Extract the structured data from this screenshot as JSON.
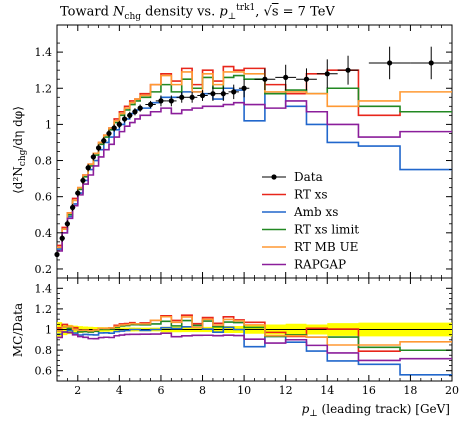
{
  "title": "Toward N_chg density vs. p_⊥^trk1, √s = 7 TeV",
  "chart_data": {
    "type": "line",
    "title": "Toward N_chg density vs. p_⊥^trk1, √s = 7 TeV",
    "xlabel": "p⊥ (leading track) [GeV]",
    "ylabel": "⟨d²Nchg/dη dφ⟩",
    "ratio_ylabel": "MC/Data",
    "xlim": [
      1,
      20
    ],
    "ylim": [
      0.15,
      1.55
    ],
    "ratio_ylim": [
      0.5,
      1.5
    ],
    "xticks": [
      2,
      4,
      6,
      8,
      10,
      12,
      14,
      16,
      18,
      20
    ],
    "yticks": [
      0.2,
      0.4,
      0.6,
      0.8,
      1.0,
      1.2,
      1.4
    ],
    "yticklabels": [
      "0.2",
      "0.4",
      "0.6",
      "0.8",
      "1",
      "1.2",
      "1.4"
    ],
    "ratio_yticks": [
      0.6,
      0.8,
      1.0,
      1.2,
      1.4
    ],
    "ratio_yticklabels": [
      "0.6",
      "0.8",
      "1",
      "1.2",
      "1.4"
    ],
    "grid": false,
    "legend_position": "inside-right",
    "data": {
      "name": "Data",
      "x": [
        1.0,
        1.25,
        1.5,
        1.75,
        2.0,
        2.25,
        2.5,
        2.75,
        3.0,
        3.25,
        3.5,
        3.75,
        4.0,
        4.25,
        4.5,
        4.75,
        5.0,
        5.5,
        6.0,
        6.5,
        7.0,
        7.5,
        8.0,
        8.5,
        9.0,
        9.5,
        10.0,
        11.0,
        12.0,
        13.0,
        14.0,
        15.0,
        17.0,
        19.0
      ],
      "y": [
        0.28,
        0.37,
        0.45,
        0.54,
        0.62,
        0.69,
        0.76,
        0.82,
        0.87,
        0.91,
        0.95,
        0.98,
        1.0,
        1.03,
        1.05,
        1.07,
        1.09,
        1.11,
        1.13,
        1.13,
        1.15,
        1.15,
        1.16,
        1.17,
        1.17,
        1.18,
        1.2,
        1.25,
        1.26,
        1.25,
        1.28,
        1.3,
        1.34,
        1.34
      ],
      "err": [
        0.02,
        0.02,
        0.02,
        0.02,
        0.02,
        0.02,
        0.02,
        0.02,
        0.02,
        0.02,
        0.02,
        0.02,
        0.02,
        0.02,
        0.02,
        0.02,
        0.02,
        0.02,
        0.03,
        0.03,
        0.03,
        0.03,
        0.03,
        0.04,
        0.04,
        0.04,
        0.05,
        0.06,
        0.07,
        0.06,
        0.08,
        0.08,
        0.09,
        0.09
      ],
      "color": "#000000"
    },
    "bin_edges": [
      1.0,
      1.25,
      1.5,
      1.75,
      2.0,
      2.25,
      2.5,
      2.75,
      3.0,
      3.25,
      3.5,
      3.75,
      4.0,
      4.25,
      4.5,
      4.75,
      5.0,
      5.5,
      6.0,
      6.5,
      7.0,
      7.5,
      8.0,
      8.5,
      9.0,
      9.5,
      10.0,
      11.0,
      12.0,
      13.0,
      14.0,
      15.5,
      17.5,
      20.0
    ],
    "series": [
      {
        "name": "RT xs",
        "color": "#e8261b",
        "values": [
          0.33,
          0.43,
          0.51,
          0.59,
          0.65,
          0.72,
          0.78,
          0.84,
          0.9,
          0.94,
          0.98,
          1.03,
          1.07,
          1.1,
          1.13,
          1.14,
          1.17,
          1.22,
          1.28,
          1.24,
          1.31,
          1.22,
          1.3,
          1.24,
          1.32,
          1.3,
          1.31,
          1.22,
          1.17,
          1.28,
          1.3,
          1.05,
          1.07
        ]
      },
      {
        "name": "Amb xs",
        "color": "#2167cc",
        "values": [
          0.31,
          0.4,
          0.49,
          0.56,
          0.62,
          0.69,
          0.75,
          0.8,
          0.86,
          0.9,
          0.93,
          0.97,
          1.0,
          1.03,
          1.06,
          1.08,
          1.09,
          1.12,
          1.15,
          1.15,
          1.18,
          1.18,
          1.17,
          1.14,
          1.2,
          1.19,
          1.02,
          1.17,
          1.1,
          1.0,
          0.9,
          0.88,
          0.75
        ]
      },
      {
        "name": "RT xs limit",
        "color": "#228822",
        "values": [
          0.32,
          0.42,
          0.5,
          0.58,
          0.64,
          0.71,
          0.77,
          0.83,
          0.89,
          0.93,
          0.97,
          1.01,
          1.05,
          1.08,
          1.11,
          1.13,
          1.15,
          1.18,
          1.22,
          1.18,
          1.25,
          1.2,
          1.26,
          1.2,
          1.26,
          1.27,
          1.25,
          1.17,
          1.19,
          1.17,
          1.2,
          1.1,
          1.07
        ]
      },
      {
        "name": "RT MB UE",
        "color": "#ff9933",
        "values": [
          0.32,
          0.42,
          0.51,
          0.58,
          0.65,
          0.72,
          0.78,
          0.84,
          0.9,
          0.94,
          0.98,
          1.02,
          1.06,
          1.09,
          1.12,
          1.14,
          1.16,
          1.22,
          1.27,
          1.22,
          1.29,
          1.18,
          1.28,
          1.22,
          1.29,
          1.29,
          1.28,
          1.18,
          1.18,
          1.17,
          1.1,
          1.13,
          1.18
        ]
      },
      {
        "name": "RAPGAP",
        "color": "#8b1e9b",
        "values": [
          0.3,
          0.4,
          0.48,
          0.55,
          0.61,
          0.67,
          0.72,
          0.77,
          0.82,
          0.86,
          0.89,
          0.93,
          0.96,
          0.99,
          1.01,
          1.03,
          1.05,
          1.07,
          1.09,
          1.06,
          1.08,
          1.09,
          1.1,
          1.1,
          1.11,
          1.12,
          1.11,
          1.09,
          1.13,
          1.07,
          1.0,
          0.93,
          0.96
        ]
      }
    ],
    "ratio_band": {
      "color": "#ffff00"
    }
  }
}
